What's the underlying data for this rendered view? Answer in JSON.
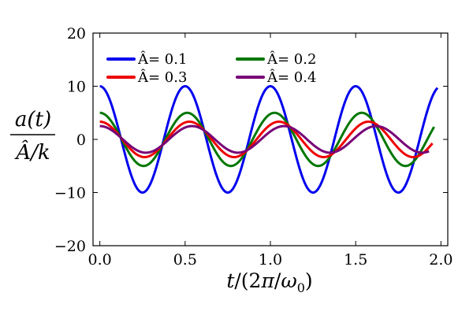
{
  "chart_data": {
    "type": "line",
    "title": "",
    "xlabel": "t/(2π/ω0)",
    "xlabel_parts": {
      "t": "t",
      "sep1": "/(2",
      "pi": "π",
      "sep2": "/",
      "omega": "ω",
      "sub": "0",
      "close": ")"
    },
    "ylabel_num": "a(t)",
    "ylabel_den": "Â/k",
    "xlim": [
      -0.04,
      2.04
    ],
    "ylim": [
      -20,
      20
    ],
    "xticks": [
      0.0,
      0.5,
      1.0,
      1.5,
      2.0
    ],
    "xtick_labels": [
      "0.0",
      "0.5",
      "1.0",
      "1.5",
      "2.0"
    ],
    "yticks": [
      -20,
      -10,
      0,
      10,
      20
    ],
    "ytick_labels": [
      "−20",
      "−10",
      "0",
      "10",
      "20"
    ],
    "legend_position": "top-left, two columns",
    "series": [
      {
        "name": "Â= 0.1",
        "color": "#0000ee",
        "amplitude": 10.0,
        "period": 0.5,
        "t_end": 1.98
      },
      {
        "name": "Â= 0.2",
        "color": "#007700",
        "amplitude": 5.0,
        "period": 0.512,
        "t_end": 1.96
      },
      {
        "name": "Â= 0.3",
        "color": "#ee0000",
        "amplitude": 3.33,
        "period": 0.525,
        "t_end": 1.95
      },
      {
        "name": "Â= 0.4",
        "color": "#770077",
        "amplitude": 2.5,
        "period": 0.54,
        "t_end": 1.93
      }
    ]
  }
}
